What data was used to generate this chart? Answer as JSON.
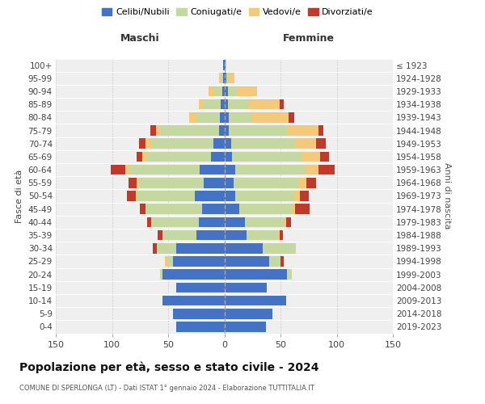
{
  "age_groups": [
    "0-4",
    "5-9",
    "10-14",
    "15-19",
    "20-24",
    "25-29",
    "30-34",
    "35-39",
    "40-44",
    "45-49",
    "50-54",
    "55-59",
    "60-64",
    "65-69",
    "70-74",
    "75-79",
    "80-84",
    "85-89",
    "90-94",
    "95-99",
    "100+"
  ],
  "birth_years": [
    "2019-2023",
    "2014-2018",
    "2009-2013",
    "2004-2008",
    "1999-2003",
    "1994-1998",
    "1989-1993",
    "1984-1988",
    "1979-1983",
    "1974-1978",
    "1969-1973",
    "1964-1968",
    "1959-1963",
    "1954-1958",
    "1949-1953",
    "1944-1948",
    "1939-1943",
    "1934-1938",
    "1929-1933",
    "1924-1928",
    "≤ 1923"
  ],
  "maschi": {
    "celibi": [
      43,
      46,
      55,
      43,
      55,
      46,
      43,
      25,
      23,
      20,
      26,
      18,
      22,
      12,
      10,
      5,
      4,
      3,
      2,
      1,
      1
    ],
    "coniugati": [
      0,
      0,
      0,
      0,
      2,
      5,
      17,
      30,
      42,
      50,
      52,
      58,
      63,
      57,
      55,
      52,
      20,
      15,
      7,
      2,
      0
    ],
    "vedovi": [
      0,
      0,
      0,
      0,
      0,
      2,
      0,
      0,
      0,
      0,
      1,
      2,
      3,
      4,
      5,
      4,
      7,
      5,
      5,
      2,
      0
    ],
    "divorziati": [
      0,
      0,
      0,
      0,
      0,
      0,
      4,
      4,
      4,
      5,
      8,
      7,
      13,
      5,
      6,
      5,
      0,
      0,
      0,
      0,
      0
    ]
  },
  "femmine": {
    "nubili": [
      37,
      43,
      55,
      38,
      56,
      40,
      34,
      20,
      18,
      13,
      10,
      8,
      10,
      7,
      6,
      4,
      4,
      3,
      3,
      2,
      1
    ],
    "coniugate": [
      0,
      0,
      0,
      0,
      4,
      10,
      30,
      28,
      35,
      48,
      52,
      58,
      62,
      62,
      58,
      52,
      20,
      18,
      8,
      2,
      0
    ],
    "vedove": [
      0,
      0,
      0,
      0,
      0,
      0,
      0,
      1,
      2,
      2,
      5,
      7,
      12,
      16,
      18,
      28,
      33,
      28,
      18,
      5,
      1
    ],
    "divorziate": [
      0,
      0,
      0,
      0,
      0,
      3,
      0,
      3,
      4,
      13,
      8,
      9,
      14,
      8,
      8,
      4,
      5,
      4,
      0,
      0,
      0
    ]
  },
  "colors": {
    "celibi": "#4472C4",
    "coniugati": "#C5D8A0",
    "vedovi": "#F5C97A",
    "divorziati": "#C0392B"
  },
  "legend_labels": [
    "Celibi/Nubili",
    "Coniugati/e",
    "Vedovi/e",
    "Divorziati/e"
  ],
  "title": "Popolazione per età, sesso e stato civile - 2024",
  "subtitle": "COMUNE DI SPERLONGA (LT) - Dati ISTAT 1° gennaio 2024 - Elaborazione TUTTITALIA.IT",
  "xlabel_left": "Maschi",
  "xlabel_right": "Femmine",
  "ylabel_left": "Fasce di età",
  "ylabel_right": "Anni di nascita",
  "xlim": 150,
  "bg_color": "#ffffff",
  "plot_bg": "#efefef"
}
